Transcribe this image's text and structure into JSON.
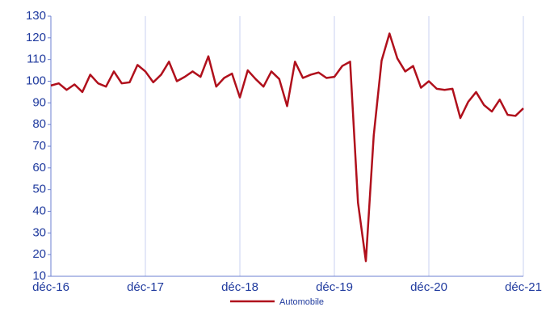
{
  "chart_data": {
    "type": "line",
    "categories": [
      "déc-16",
      null,
      null,
      null,
      null,
      null,
      null,
      null,
      null,
      null,
      null,
      null,
      "déc-17",
      null,
      null,
      null,
      null,
      null,
      null,
      null,
      null,
      null,
      null,
      null,
      "déc-18",
      null,
      null,
      null,
      null,
      null,
      null,
      null,
      null,
      null,
      null,
      null,
      "déc-19",
      null,
      null,
      null,
      null,
      null,
      null,
      null,
      null,
      null,
      null,
      null,
      "déc-20",
      null,
      null,
      null,
      null,
      null,
      null,
      null,
      null,
      null,
      null,
      null,
      "déc-21"
    ],
    "series": [
      {
        "name": "Automobile",
        "color": "#b0101c",
        "values": [
          98,
          99,
          96,
          98.5,
          95,
          103,
          99,
          97.5,
          104.5,
          99,
          99.5,
          107.5,
          104.5,
          99.5,
          103,
          109,
          100,
          102,
          104.5,
          102,
          111.5,
          97.5,
          101.5,
          103.5,
          92.5,
          105,
          101,
          97.5,
          104.5,
          101,
          88.5,
          109,
          101.5,
          103,
          104,
          101.5,
          102,
          107,
          109,
          44,
          17,
          75,
          109.5,
          122,
          110.5,
          104.5,
          107,
          97,
          100,
          96.5,
          96,
          96.5,
          83,
          90.5,
          95,
          89,
          86,
          91.5,
          84.5,
          84,
          87.5
        ]
      }
    ],
    "ylim": [
      10,
      130
    ],
    "yticks": [
      10,
      20,
      30,
      40,
      50,
      60,
      70,
      80,
      90,
      100,
      110,
      120,
      130
    ],
    "grid": true,
    "legend": "bottom"
  }
}
